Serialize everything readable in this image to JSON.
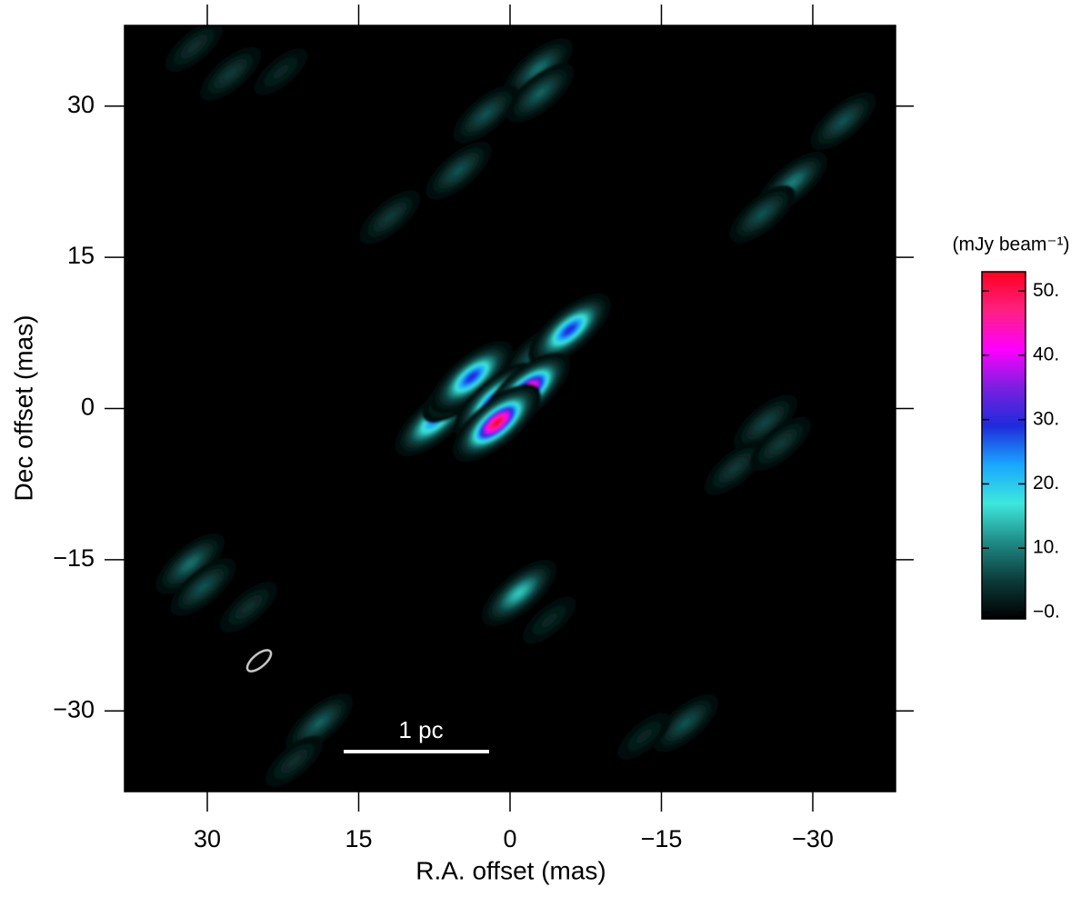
{
  "chart_data": {
    "type": "image",
    "xlabel": "R.A. offset (mas)",
    "ylabel": "Dec offset (mas)",
    "xlim": [
      38.2,
      -38.2
    ],
    "ylim": [
      -38,
      38
    ],
    "xticks": [
      30,
      15,
      0,
      {
        "value": -15,
        "label": "−15"
      },
      {
        "value": -30,
        "label": "−30"
      }
    ],
    "yticks": [
      30,
      15,
      0,
      {
        "value": -15,
        "label": "−15"
      },
      {
        "value": -30,
        "label": "−30"
      }
    ],
    "background": "#000000",
    "colormap": [
      "#000000",
      "#0b3b3a",
      "#1f8c86",
      "#3de8dc",
      "#1aa6ff",
      "#1e2bdc",
      "#7a1fe0",
      "#ff00ff",
      "#ff2080",
      "#ff0020"
    ],
    "clim": [
      -1,
      53
    ],
    "colorbar_label": "(mJy beam⁻¹)",
    "colorbar_ticks": [
      {
        "value": 50,
        "label": "50."
      },
      {
        "value": 40,
        "label": "40."
      },
      {
        "value": 30,
        "label": "30."
      },
      {
        "value": 20,
        "label": "20."
      },
      {
        "value": 10,
        "label": "10."
      },
      {
        "value": 0,
        "label": "−0."
      }
    ],
    "scale_bar_label": "1 pc",
    "components": [
      {
        "x": 7.4,
        "y": -1.2,
        "peak": 25
      },
      {
        "x": 5.1,
        "y": 1.7,
        "peak": 12
      },
      {
        "x": -2.5,
        "y": 5.3,
        "peak": 8
      },
      {
        "x": 3.8,
        "y": 3.1,
        "peak": 30
      },
      {
        "x": -5.9,
        "y": 7.8,
        "peak": 30
      },
      {
        "x": 1.3,
        "y": 0.8,
        "peak": 42
      },
      {
        "x": -1.6,
        "y": 1.7,
        "peak": 52
      },
      {
        "x": 1.3,
        "y": -1.4,
        "peak": 53
      },
      {
        "x": -0.9,
        "y": -18.3,
        "peak": 15
      },
      {
        "x": -2.8,
        "y": 33.7,
        "peak": 9
      },
      {
        "x": -3.0,
        "y": 31.3,
        "peak": 8
      },
      {
        "x": 2.4,
        "y": 29.2,
        "peak": 7
      },
      {
        "x": 5.1,
        "y": 23.6,
        "peak": 7
      },
      {
        "x": 11.9,
        "y": 19.0,
        "peak": 5
      },
      {
        "x": -28.0,
        "y": 22.4,
        "peak": 10
      },
      {
        "x": -25.0,
        "y": 19.3,
        "peak": 7
      },
      {
        "x": -33.0,
        "y": 28.5,
        "peak": 7
      },
      {
        "x": 31.7,
        "y": -15.4,
        "peak": 9
      },
      {
        "x": 30.4,
        "y": -17.7,
        "peak": 7
      },
      {
        "x": 25.9,
        "y": -19.7,
        "peak": 4
      },
      {
        "x": 27.7,
        "y": 33.2,
        "peak": 5
      },
      {
        "x": 31.3,
        "y": 35.9,
        "peak": 4
      },
      {
        "x": 22.7,
        "y": 33.4,
        "peak": 3
      },
      {
        "x": -25.3,
        "y": -1.4,
        "peak": 6
      },
      {
        "x": -22.3,
        "y": -5.9,
        "peak": 5
      },
      {
        "x": -26.8,
        "y": -3.5,
        "peak": 5
      },
      {
        "x": 18.9,
        "y": -31.2,
        "peak": 8
      },
      {
        "x": 21.4,
        "y": -35.0,
        "peak": 4
      },
      {
        "x": -17.4,
        "y": -31.2,
        "peak": 7
      },
      {
        "x": -13.3,
        "y": -32.5,
        "peak": 3
      },
      {
        "x": -3.9,
        "y": -21.0,
        "peak": 3
      }
    ]
  }
}
